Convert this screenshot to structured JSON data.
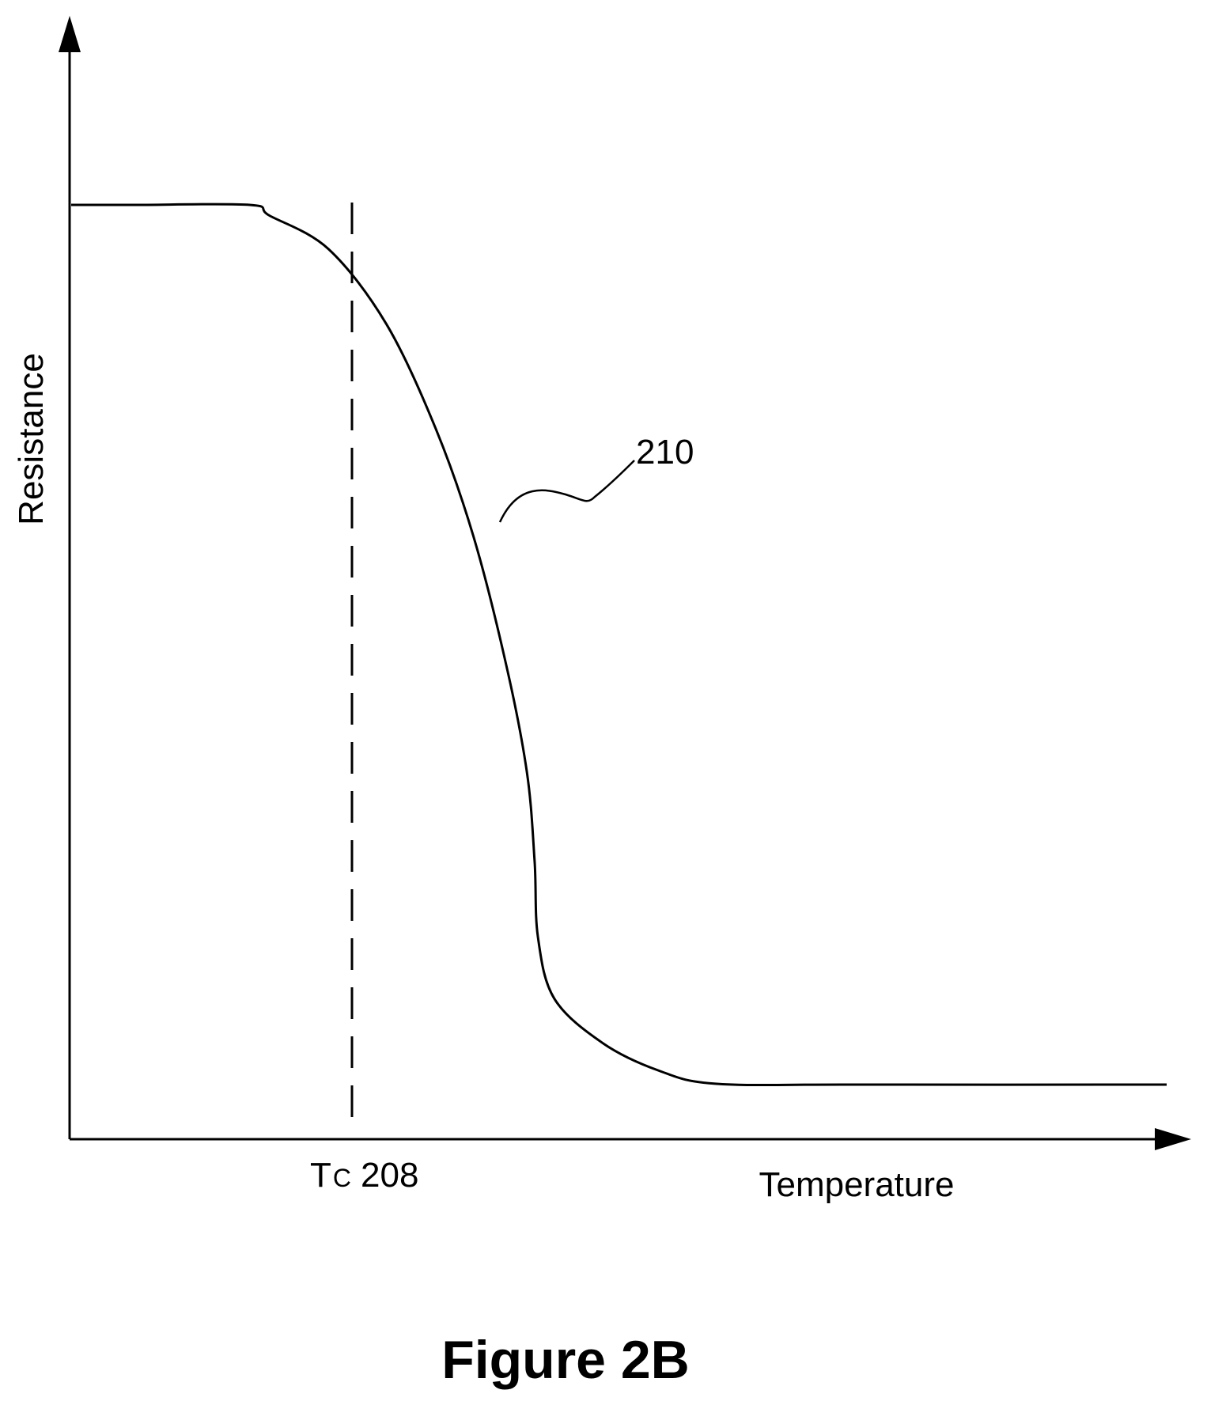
{
  "chart_data": {
    "type": "line",
    "title": "",
    "caption": "Figure 2B",
    "xlabel": "Temperature",
    "ylabel": "Resistance",
    "grid": false,
    "annotations": {
      "critical_temperature": {
        "symbol": "T",
        "subscript": "C",
        "ref": "208"
      },
      "curve_ref": "210"
    },
    "series": [
      {
        "x": [
          0.0,
          0.058,
          0.163,
          0.181,
          0.235,
          0.288,
          0.333,
          0.367,
          0.397,
          0.416,
          0.423,
          0.426,
          0.441,
          0.485,
          0.536,
          0.588,
          0.711,
          1.0
        ],
        "y": [
          1.0,
          1.0,
          1.0,
          0.988,
          0.95,
          0.865,
          0.747,
          0.627,
          0.482,
          0.36,
          0.26,
          0.175,
          0.105,
          0.055,
          0.024,
          0.009,
          0.008,
          0.008
        ]
      }
    ]
  }
}
